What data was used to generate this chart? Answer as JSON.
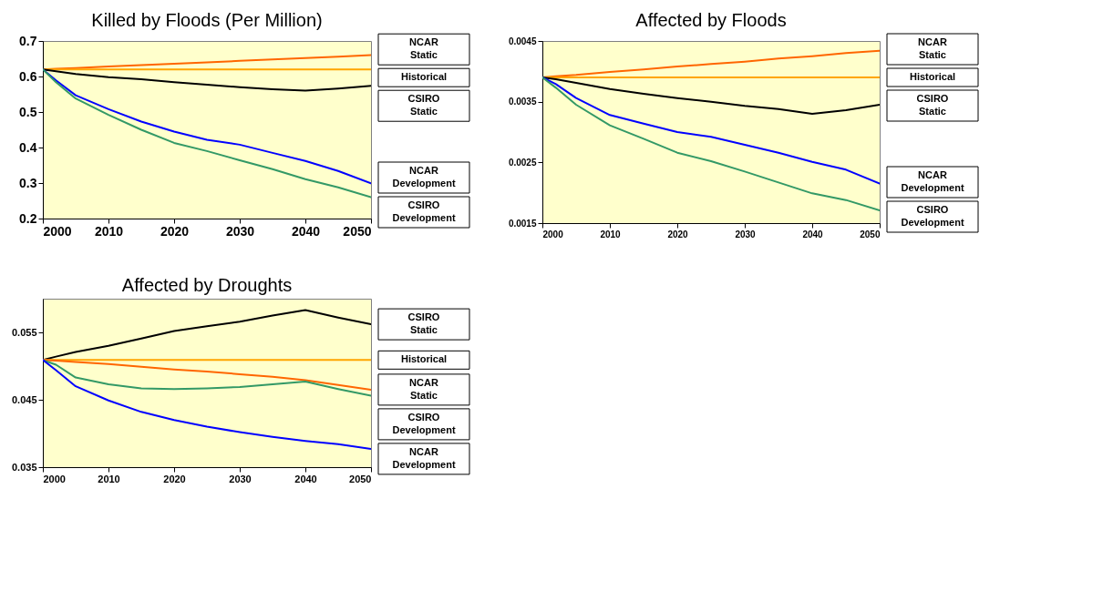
{
  "chart_data": [
    {
      "type": "line",
      "title": "Killed by Floods (Per Million)",
      "x": [
        2000,
        2002,
        2005,
        2010,
        2015,
        2020,
        2025,
        2030,
        2035,
        2040,
        2045,
        2050
      ],
      "xlim": [
        2000,
        2050
      ],
      "xticks": [
        2000,
        2010,
        2020,
        2030,
        2040,
        2050
      ],
      "ylim": [
        0.2,
        0.7
      ],
      "yticks": [
        0.2,
        0.3,
        0.4,
        0.5,
        0.6,
        0.7
      ],
      "grid": false,
      "legend": false,
      "series": [
        {
          "name": "NCAR Static",
          "color": "#ff6600",
          "values": [
            0.62,
            0.622,
            0.624,
            0.628,
            0.632,
            0.636,
            0.64,
            0.644,
            0.648,
            0.652,
            0.656,
            0.66
          ]
        },
        {
          "name": "Historical",
          "color": "#ffa500",
          "values": [
            0.62,
            0.62,
            0.62,
            0.62,
            0.62,
            0.62,
            0.62,
            0.62,
            0.62,
            0.62,
            0.62,
            0.62
          ]
        },
        {
          "name": "CSIRO Static",
          "color": "#000000",
          "values": [
            0.62,
            0.615,
            0.607,
            0.598,
            0.592,
            0.584,
            0.577,
            0.57,
            0.564,
            0.56,
            0.566,
            0.574
          ]
        },
        {
          "name": "NCAR Development",
          "color": "#0000ff",
          "values": [
            0.62,
            0.589,
            0.547,
            0.508,
            0.473,
            0.445,
            0.422,
            0.408,
            0.385,
            0.362,
            0.334,
            0.299
          ]
        },
        {
          "name": "CSIRO Development",
          "color": "#339966",
          "values": [
            0.62,
            0.584,
            0.538,
            0.492,
            0.45,
            0.413,
            0.39,
            0.364,
            0.339,
            0.311,
            0.288,
            0.26
          ]
        }
      ]
    },
    {
      "type": "line",
      "title": "Affected by Floods",
      "x": [
        2000,
        2002,
        2005,
        2010,
        2015,
        2020,
        2025,
        2030,
        2035,
        2040,
        2045,
        2050
      ],
      "xlim": [
        2000,
        2050
      ],
      "xticks": [
        2000,
        2010,
        2020,
        2030,
        2040,
        2050
      ],
      "ylim": [
        0.0015,
        0.0045
      ],
      "yticks": [
        0.0015,
        0.0025,
        0.0035,
        0.0045
      ],
      "grid": false,
      "legend": false,
      "series": [
        {
          "name": "NCAR Static",
          "color": "#ff6600",
          "values": [
            0.0039,
            0.00392,
            0.00394,
            0.00399,
            0.00403,
            0.00408,
            0.00412,
            0.00416,
            0.00421,
            0.00425,
            0.0043,
            0.00434
          ]
        },
        {
          "name": "Historical",
          "color": "#ffa500",
          "values": [
            0.0039,
            0.0039,
            0.0039,
            0.0039,
            0.0039,
            0.0039,
            0.0039,
            0.0039,
            0.0039,
            0.0039,
            0.0039,
            0.0039
          ]
        },
        {
          "name": "CSIRO Static",
          "color": "#000000",
          "values": [
            0.0039,
            0.00387,
            0.00381,
            0.00371,
            0.00363,
            0.00356,
            0.0035,
            0.00343,
            0.00338,
            0.0033,
            0.00336,
            0.00345
          ]
        },
        {
          "name": "NCAR Development",
          "color": "#0000ff",
          "values": [
            0.0039,
            0.00379,
            0.00356,
            0.00328,
            0.00314,
            0.003,
            0.00292,
            0.00279,
            0.00266,
            0.00251,
            0.00238,
            0.00215
          ]
        },
        {
          "name": "CSIRO Development",
          "color": "#339966",
          "values": [
            0.0039,
            0.00373,
            0.00345,
            0.00311,
            0.00289,
            0.00266,
            0.00252,
            0.00235,
            0.00217,
            0.00199,
            0.00188,
            0.00171
          ]
        }
      ]
    },
    {
      "type": "line",
      "title": "Affected by Droughts",
      "x": [
        2000,
        2002,
        2005,
        2010,
        2015,
        2020,
        2025,
        2030,
        2035,
        2040,
        2045,
        2050
      ],
      "xlim": [
        2000,
        2050
      ],
      "xticks": [
        2000,
        2010,
        2020,
        2030,
        2040,
        2050
      ],
      "ylim": [
        0.035,
        0.06
      ],
      "yticks": [
        0.035,
        0.045,
        0.055
      ],
      "grid": false,
      "legend": false,
      "series": [
        {
          "name": "CSIRO Static",
          "color": "#000000",
          "values": [
            0.0509,
            0.0514,
            0.0521,
            0.053,
            0.0541,
            0.0552,
            0.0559,
            0.0566,
            0.0575,
            0.0583,
            0.0572,
            0.0562
          ]
        },
        {
          "name": "Historical",
          "color": "#ffa500",
          "values": [
            0.0509,
            0.0509,
            0.0509,
            0.0509,
            0.0509,
            0.0509,
            0.0509,
            0.0509,
            0.0509,
            0.0509,
            0.0509,
            0.0509
          ]
        },
        {
          "name": "NCAR Static",
          "color": "#ff6600",
          "values": [
            0.0509,
            0.0508,
            0.0506,
            0.0503,
            0.0499,
            0.0495,
            0.0492,
            0.0488,
            0.0484,
            0.0479,
            0.0472,
            0.0465
          ]
        },
        {
          "name": "CSIRO Development",
          "color": "#339966",
          "values": [
            0.0509,
            0.0502,
            0.0483,
            0.0473,
            0.0467,
            0.0466,
            0.0467,
            0.0469,
            0.0473,
            0.0477,
            0.0466,
            0.0456
          ]
        },
        {
          "name": "NCAR Development",
          "color": "#0000ff",
          "values": [
            0.0509,
            0.0494,
            0.047,
            0.0449,
            0.0432,
            0.042,
            0.041,
            0.0402,
            0.0395,
            0.0389,
            0.0384,
            0.0377
          ]
        }
      ]
    }
  ]
}
